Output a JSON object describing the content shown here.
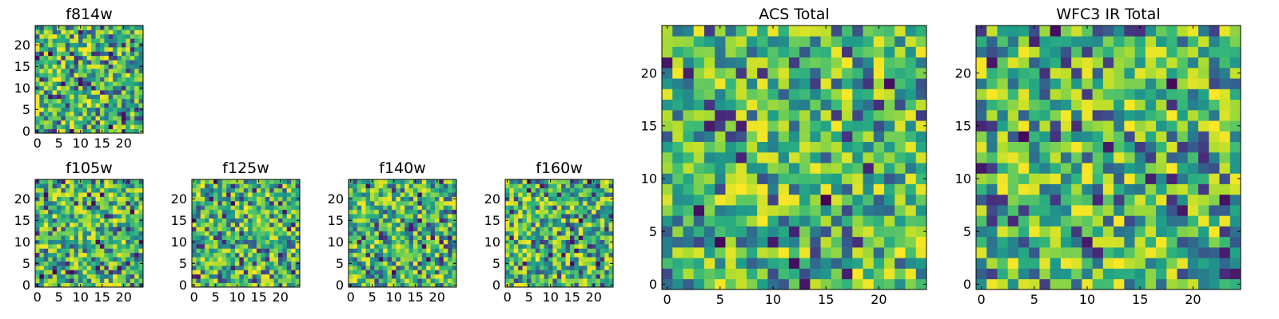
{
  "chart_data": [
    {
      "type": "heatmap",
      "title": "f814w",
      "colormap": "viridis",
      "grid": false,
      "size": 25,
      "xlim": [
        0,
        24
      ],
      "ylim": [
        0,
        24
      ],
      "seed": 814,
      "xticks": [
        0,
        5,
        10,
        15,
        20
      ],
      "yticks": [
        0,
        5,
        10,
        15,
        20
      ],
      "xtick_labels": [
        "0",
        "5",
        "10",
        "15",
        "20"
      ],
      "ytick_labels": [
        "0",
        "5",
        "10",
        "15",
        "20"
      ]
    },
    {
      "type": "heatmap",
      "title": "f105w",
      "colormap": "viridis",
      "grid": false,
      "size": 25,
      "xlim": [
        0,
        24
      ],
      "ylim": [
        0,
        24
      ],
      "seed": 105,
      "xticks": [
        0,
        5,
        10,
        15,
        20
      ],
      "yticks": [
        0,
        5,
        10,
        15,
        20
      ],
      "xtick_labels": [
        "0",
        "5",
        "10",
        "15",
        "20"
      ],
      "ytick_labels": [
        "0",
        "5",
        "10",
        "15",
        "20"
      ]
    },
    {
      "type": "heatmap",
      "title": "f125w",
      "colormap": "viridis",
      "grid": false,
      "size": 25,
      "xlim": [
        0,
        24
      ],
      "ylim": [
        0,
        24
      ],
      "seed": 125,
      "xticks": [
        0,
        5,
        10,
        15,
        20
      ],
      "yticks": [
        0,
        5,
        10,
        15,
        20
      ],
      "xtick_labels": [
        "0",
        "5",
        "10",
        "15",
        "20"
      ],
      "ytick_labels": [
        "0",
        "5",
        "10",
        "15",
        "20"
      ]
    },
    {
      "type": "heatmap",
      "title": "f140w",
      "colormap": "viridis",
      "grid": false,
      "size": 25,
      "xlim": [
        0,
        24
      ],
      "ylim": [
        0,
        24
      ],
      "seed": 140,
      "xticks": [
        0,
        5,
        10,
        15,
        20
      ],
      "yticks": [
        0,
        5,
        10,
        15,
        20
      ],
      "xtick_labels": [
        "0",
        "5",
        "10",
        "15",
        "20"
      ],
      "ytick_labels": [
        "0",
        "5",
        "10",
        "15",
        "20"
      ]
    },
    {
      "type": "heatmap",
      "title": "f160w",
      "colormap": "viridis",
      "grid": false,
      "size": 25,
      "xlim": [
        0,
        24
      ],
      "ylim": [
        0,
        24
      ],
      "seed": 160,
      "xticks": [
        0,
        5,
        10,
        15,
        20
      ],
      "yticks": [
        0,
        5,
        10,
        15,
        20
      ],
      "xtick_labels": [
        "0",
        "5",
        "10",
        "15",
        "20"
      ],
      "ytick_labels": [
        "0",
        "5",
        "10",
        "15",
        "20"
      ]
    },
    {
      "type": "heatmap",
      "title": "ACS Total",
      "colormap": "viridis",
      "grid": false,
      "size": 25,
      "xlim": [
        0,
        24
      ],
      "ylim": [
        0,
        24
      ],
      "seed": 1001,
      "xticks": [
        0,
        5,
        10,
        15,
        20
      ],
      "yticks": [
        0,
        5,
        10,
        15,
        20
      ],
      "xtick_labels": [
        "0",
        "5",
        "10",
        "15",
        "20"
      ],
      "ytick_labels": [
        "0",
        "5",
        "10",
        "15",
        "20"
      ]
    },
    {
      "type": "heatmap",
      "title": "WFC3 IR Total",
      "colormap": "viridis",
      "grid": false,
      "size": 25,
      "xlim": [
        0,
        24
      ],
      "ylim": [
        0,
        24
      ],
      "seed": 2002,
      "xticks": [
        0,
        5,
        10,
        15,
        20
      ],
      "yticks": [
        0,
        5,
        10,
        15,
        20
      ],
      "xtick_labels": [
        "0",
        "5",
        "10",
        "15",
        "20"
      ],
      "ytick_labels": [
        "0",
        "5",
        "10",
        "15",
        "20"
      ]
    }
  ],
  "colors": {
    "frame": "#000000",
    "background": "#ffffff"
  }
}
